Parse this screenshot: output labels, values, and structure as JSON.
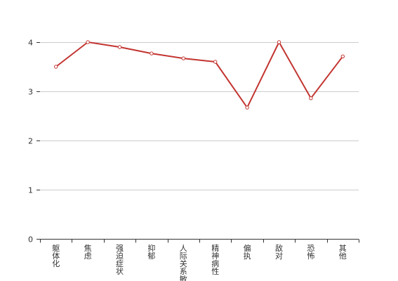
{
  "chart_data": {
    "type": "line",
    "categories": [
      "躯体化",
      "焦虑",
      "强迫症状",
      "抑郁",
      "人际关系敏感",
      "精神病性",
      "偏执",
      "敌对",
      "恐怖",
      "其他"
    ],
    "series": [
      {
        "values": [
          3.5,
          4.0,
          3.9,
          3.77,
          3.67,
          3.6,
          2.67,
          4.0,
          2.86,
          3.71
        ]
      }
    ],
    "title": "",
    "xlabel": "",
    "ylabel": "",
    "ylim": [
      0,
      4
    ],
    "yticks": [
      0,
      1,
      2,
      3,
      4
    ],
    "grid": true,
    "line_color": "#c23531",
    "grid_color": "#cccccc",
    "axis_color": "#333333"
  }
}
